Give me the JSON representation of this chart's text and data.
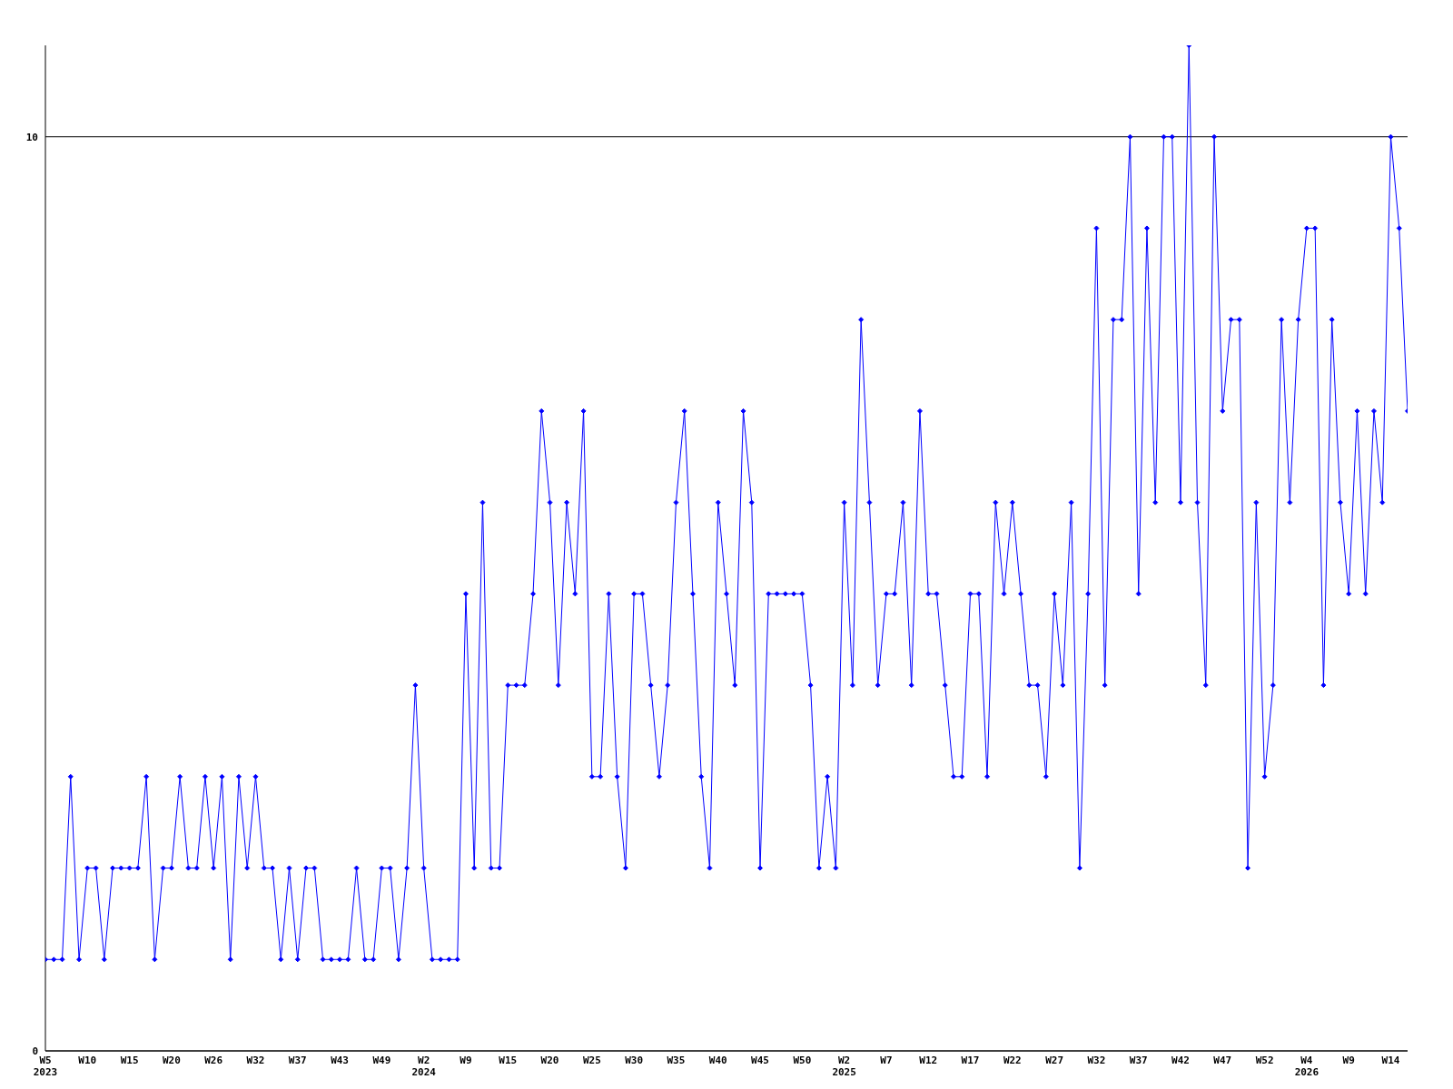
{
  "chart_data": {
    "type": "line",
    "categories": [
      "W5\n2023",
      null,
      null,
      null,
      null,
      "W10",
      null,
      null,
      null,
      null,
      "W15",
      null,
      null,
      null,
      null,
      "W20",
      null,
      null,
      null,
      null,
      "W26",
      null,
      null,
      null,
      null,
      "W32",
      null,
      null,
      null,
      null,
      "W37",
      null,
      null,
      null,
      null,
      "W43",
      null,
      null,
      null,
      null,
      "W49",
      null,
      null,
      null,
      null,
      "W2\n2024",
      null,
      null,
      null,
      null,
      "W9",
      null,
      null,
      null,
      null,
      "W15",
      null,
      null,
      null,
      null,
      "W20",
      null,
      null,
      null,
      null,
      "W25",
      null,
      null,
      null,
      null,
      "W30",
      null,
      null,
      null,
      null,
      "W35",
      null,
      null,
      null,
      null,
      "W40",
      null,
      null,
      null,
      null,
      "W45",
      null,
      null,
      null,
      null,
      "W50",
      null,
      null,
      null,
      null,
      "W2\n2025",
      null,
      null,
      null,
      null,
      "W7",
      null,
      null,
      null,
      null,
      "W12",
      null,
      null,
      null,
      null,
      "W17",
      null,
      null,
      null,
      null,
      "W22",
      null,
      null,
      null,
      null,
      "W27",
      null,
      null,
      null,
      null,
      "W32",
      null,
      null,
      null,
      null,
      "W37",
      null,
      null,
      null,
      null,
      "W42",
      null,
      null,
      null,
      null,
      "W47",
      null,
      null,
      null,
      null,
      "W52",
      null,
      null,
      null,
      null,
      "W4\n2026",
      null,
      null,
      null,
      null,
      "W9",
      null,
      null,
      null,
      null,
      "W14",
      null,
      null
    ],
    "series": [
      {
        "color": "#0000ff",
        "values": [
          1,
          1,
          1,
          3,
          1,
          2,
          2,
          1,
          2,
          2,
          2,
          2,
          3,
          1,
          2,
          2,
          3,
          2,
          2,
          3,
          2,
          3,
          1,
          3,
          2,
          3,
          2,
          2,
          1,
          2,
          1,
          2,
          2,
          1,
          1,
          1,
          1,
          2,
          1,
          1,
          2,
          2,
          1,
          2,
          4,
          2,
          1,
          1,
          1,
          1,
          5,
          2,
          6,
          2,
          2,
          4,
          4,
          4,
          5,
          7,
          6,
          4,
          6,
          5,
          7,
          3,
          3,
          5,
          3,
          2,
          5,
          5,
          4,
          3,
          4,
          6,
          7,
          5,
          3,
          2,
          6,
          5,
          4,
          7,
          6,
          2,
          5,
          5,
          5,
          5,
          5,
          4,
          2,
          3,
          2,
          6,
          4,
          8,
          6,
          4,
          5,
          5,
          6,
          4,
          7,
          5,
          5,
          4,
          3,
          3,
          5,
          5,
          3,
          6,
          5,
          6,
          5,
          4,
          4,
          3,
          5,
          4,
          6,
          2,
          5,
          9,
          4,
          8,
          8,
          10,
          5,
          9,
          6,
          10,
          10,
          6,
          11,
          6,
          4,
          10,
          7,
          8,
          8,
          2,
          6,
          3,
          4,
          8,
          6,
          8,
          9,
          9,
          4,
          8,
          6,
          5,
          7,
          5,
          7,
          6,
          10,
          9,
          7
        ]
      }
    ],
    "ylim": [
      0,
      11
    ],
    "yticks": [
      0,
      10
    ],
    "grid": "y",
    "marker": "diamond"
  }
}
